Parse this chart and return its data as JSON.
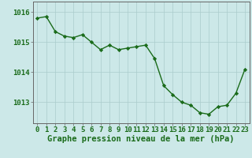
{
  "hours": [
    0,
    1,
    2,
    3,
    4,
    5,
    6,
    7,
    8,
    9,
    10,
    11,
    12,
    13,
    14,
    15,
    16,
    17,
    18,
    19,
    20,
    21,
    22,
    23
  ],
  "pressure": [
    1015.8,
    1015.85,
    1015.35,
    1015.2,
    1015.15,
    1015.25,
    1015.0,
    1014.75,
    1014.9,
    1014.75,
    1014.8,
    1014.85,
    1014.9,
    1014.45,
    1013.55,
    1013.25,
    1013.0,
    1012.9,
    1012.65,
    1012.6,
    1012.85,
    1012.9,
    1013.3,
    1014.1
  ],
  "line_color": "#1a6b1a",
  "marker": "D",
  "marker_size": 2.2,
  "bg_color": "#cce8e8",
  "grid_color": "#aacccc",
  "ylabel_ticks": [
    1013,
    1014,
    1015,
    1016
  ],
  "ylim": [
    1012.3,
    1016.35
  ],
  "xlim": [
    -0.5,
    23.5
  ],
  "xlabel": "Graphe pression niveau de la mer (hPa)",
  "xlabel_fontsize": 7.5,
  "tick_fontsize": 6.5,
  "label_color": "#1a6b1a",
  "axis_color": "#666666",
  "linewidth": 1.0
}
